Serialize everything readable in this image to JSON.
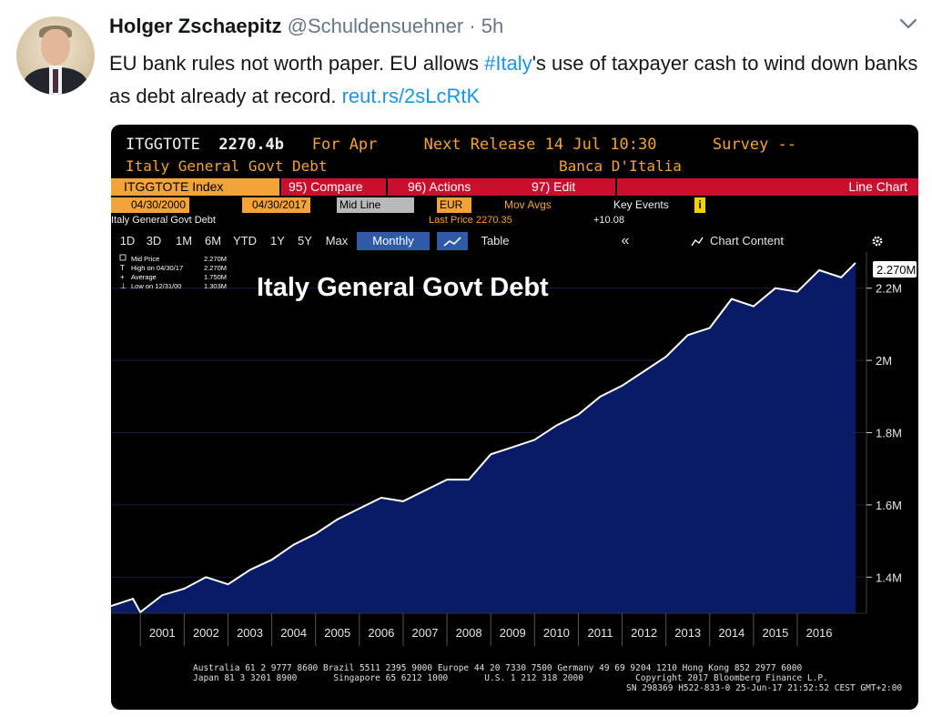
{
  "tweet": {
    "name": "Holger Zschaepitz",
    "handle": "@Schuldensuehner",
    "separator": "·",
    "time": "5h",
    "text_1": "EU bank rules not worth paper. EU allows ",
    "hashtag": "#Italy",
    "text_2": "'s use of taxpayer cash to wind down banks as debt already at record. ",
    "link": "reut.rs/2sLcRtK"
  },
  "terminal": {
    "ticker": "ITGGTOTE",
    "value": "2270.4b",
    "for_label": "For Apr",
    "next_release": "Next Release 14 Jul 10:30",
    "survey": "Survey --",
    "security_name": "Italy General Govt Debt",
    "source": "Banca D'Italia",
    "index_label": "ITGGTOTE Index",
    "compare_label": "95) Compare",
    "actions_label": "96) Actions",
    "edit_label": "97) Edit",
    "chart_type": "Line Chart",
    "start_date": "04/30/2000",
    "end_date": "04/30/2017",
    "price_field": "Mid Line",
    "currency": "EUR",
    "mov_avgs": "Mov Avgs",
    "key_events": "Key Events",
    "info_icon": "i",
    "series_label": "Italy General Govt Debt",
    "last_price": "Last Price 2270.35",
    "change": "+10.08",
    "periods": [
      "1D",
      "3D",
      "1M",
      "6M",
      "YTD",
      "1Y",
      "5Y",
      "Max"
    ],
    "frequency": "Monthly",
    "table_label": "Table",
    "collapse_label": "«",
    "chart_content": "Chart Content",
    "legend": [
      {
        "label": "Mid Price",
        "value": "2.270M"
      },
      {
        "label": "High on 04/30/17",
        "value": "2.270M"
      },
      {
        "label": "Average",
        "value": "1.750M"
      },
      {
        "label": "Low on 12/31/00",
        "value": "1.303M"
      }
    ],
    "footer_line1": "Australia 61 2 9777 8600 Brazil 5511 2395 9000 Europe 44 20 7330 7500 Germany 49 69 9204 1210 Hong Kong 852 2977 6000",
    "footer_line2": "Japan 81 3 3201 8900       Singapore 65 6212 1000       U.S. 1 212 318 2000          Copyright 2017 Bloomberg Finance L.P.",
    "footer_line3": "SN 298369 H522-833-0 25-Jun-17 21:52:52 CEST GMT+2:00"
  },
  "colors": {
    "amber": "#f2a33a",
    "bloomberg_red": "#c8102e",
    "area_fill": "#0a1c6b",
    "link_blue": "#1b95e0"
  },
  "chart_data": {
    "type": "area",
    "title": "Italy General Govt Debt",
    "ylabel": "",
    "xlabel": "",
    "x_tick_labels": [
      "2001",
      "2002",
      "2003",
      "2004",
      "2005",
      "2006",
      "2007",
      "2008",
      "2009",
      "2010",
      "2011",
      "2012",
      "2013",
      "2014",
      "2015",
      "2016"
    ],
    "y_tick_labels": [
      "1.4M",
      "1.6M",
      "1.8M",
      "2M",
      "2.2M"
    ],
    "y_ticks": [
      1400000,
      1600000,
      1800000,
      2000000,
      2200000
    ],
    "last_value_label": "2.270M",
    "ylim": [
      1300000,
      2300000
    ],
    "xlim": [
      2000.33,
      2017.33
    ],
    "series": [
      {
        "x": [
          2000.33,
          2000.83,
          2001.0,
          2001.5,
          2002.0,
          2002.5,
          2003.0,
          2003.5,
          2004.0,
          2004.5,
          2005.0,
          2005.5,
          2006.0,
          2006.5,
          2007.0,
          2007.5,
          2008.0,
          2008.5,
          2009.0,
          2009.5,
          2010.0,
          2010.5,
          2011.0,
          2011.5,
          2012.0,
          2012.5,
          2013.0,
          2013.5,
          2014.0,
          2014.5,
          2015.0,
          2015.5,
          2016.0,
          2016.5,
          2017.0,
          2017.33
        ],
        "y": [
          1320000,
          1340000,
          1303000,
          1350000,
          1368000,
          1400000,
          1380000,
          1420000,
          1448000,
          1490000,
          1520000,
          1560000,
          1590000,
          1620000,
          1610000,
          1640000,
          1670000,
          1670000,
          1740000,
          1760000,
          1780000,
          1820000,
          1850000,
          1900000,
          1930000,
          1970000,
          2010000,
          2070000,
          2090000,
          2170000,
          2150000,
          2200000,
          2190000,
          2250000,
          2230000,
          2270000
        ]
      }
    ]
  }
}
